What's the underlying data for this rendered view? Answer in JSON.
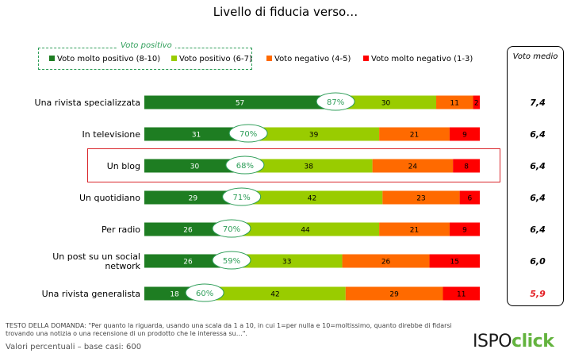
{
  "title": "Livello di fiducia verso…",
  "legend": {
    "header": "Voto positivo",
    "items": [
      {
        "label": "Voto molto positivo (8-10)",
        "color": "#1e7d22"
      },
      {
        "label": "Voto positivo (6-7)",
        "color": "#99cc00"
      },
      {
        "label": "Voto negativo (4-5)",
        "color": "#ff6a00"
      },
      {
        "label": "Voto molto negativo (1-3)",
        "color": "#ff0000"
      }
    ]
  },
  "average_header": "Voto medio",
  "question_text": "TESTO DELLA DOMANDA: \"Per quanto la riguarda, usando una scala da 1 a 10, in cui 1=per nulla e 10=moltissimo, quanto direbbe di fidarsi trovando una notizia o una recensione di un prodotto che le interessa su…\".",
  "base_text": "Valori percentuali – base casi: 600",
  "logo": {
    "part1": "ISPO",
    "part2": "click"
  },
  "chart_data": {
    "type": "bar",
    "orientation": "horizontal",
    "stacked": true,
    "categories": [
      "Una rivista specializzata",
      "In televisione",
      "Un blog",
      "Un quotidiano",
      "Per radio",
      "Un post su un social network",
      "Una rivista generalista"
    ],
    "series": [
      {
        "name": "Voto molto positivo (8-10)",
        "color": "#1e7d22",
        "values": [
          57,
          31,
          30,
          29,
          26,
          26,
          18
        ]
      },
      {
        "name": "Voto positivo (6-7)",
        "color": "#99cc00",
        "values": [
          30,
          39,
          38,
          42,
          44,
          33,
          42
        ]
      },
      {
        "name": "Voto negativo (4-5)",
        "color": "#ff6a00",
        "values": [
          11,
          21,
          24,
          23,
          21,
          26,
          29
        ]
      },
      {
        "name": "Voto molto negativo (1-3)",
        "color": "#ff0000",
        "values": [
          2,
          9,
          8,
          6,
          9,
          15,
          11
        ]
      }
    ],
    "positive_totals": [
      "87%",
      "70%",
      "68%",
      "71%",
      "70%",
      "59%",
      "60%"
    ],
    "averages": [
      "7,4",
      "6,4",
      "6,4",
      "6,4",
      "6,4",
      "6,0",
      "5,9"
    ],
    "average_highlight_color": "#e31e24",
    "highlighted_category": "Un blog",
    "xlim": [
      0,
      100
    ]
  }
}
